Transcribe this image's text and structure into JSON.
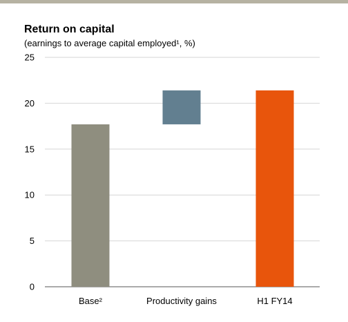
{
  "chart_data": {
    "type": "bar",
    "subtype": "waterfall",
    "title": "Return on capital",
    "subtitle": "(earnings to average capital employed¹, %)",
    "categories": [
      "Base²",
      "Productivity gains",
      "H1 FY14"
    ],
    "bars": [
      {
        "category": "Base²",
        "start": 0,
        "end": 17.7,
        "color": "#8f8e7f"
      },
      {
        "category": "Productivity gains",
        "start": 17.7,
        "end": 21.4,
        "color": "#627f90"
      },
      {
        "category": "H1 FY14",
        "start": 0,
        "end": 21.4,
        "color": "#e8550c"
      }
    ],
    "ylim": [
      0,
      25
    ],
    "yticks": [
      "0",
      "5",
      "10",
      "15",
      "20",
      "25"
    ],
    "grid": true,
    "xlabel": "",
    "ylabel": ""
  }
}
